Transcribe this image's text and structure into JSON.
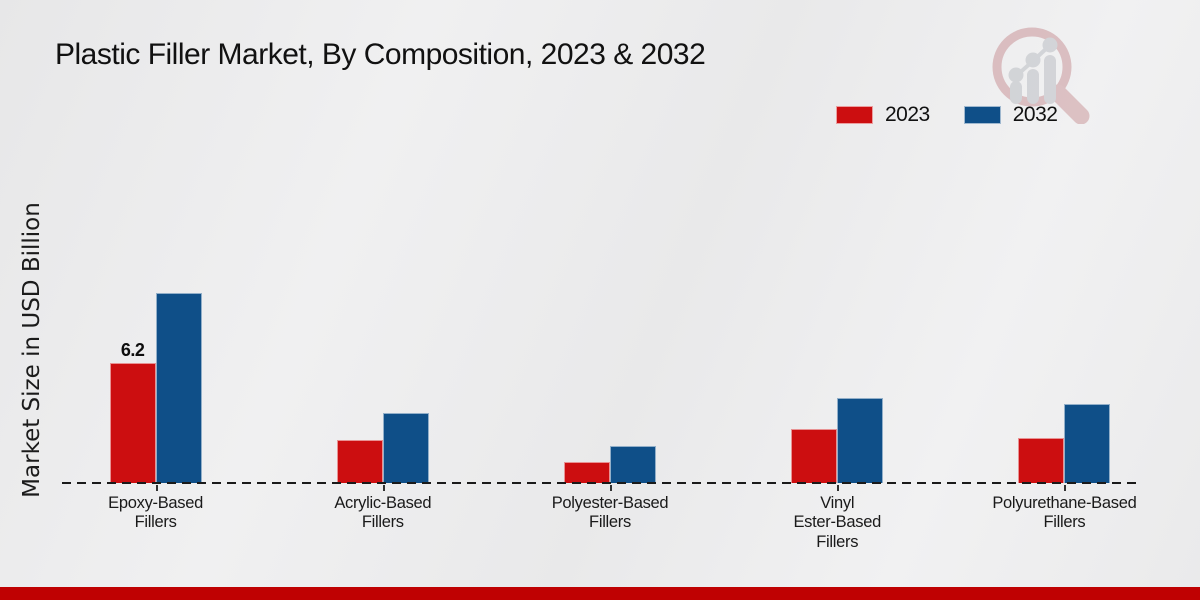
{
  "title": "Plastic Filler Market, By Composition, 2023 & 2032",
  "y_axis_label": "Market Size in USD Billion",
  "legend": {
    "items": [
      {
        "label": "2023",
        "color": "#cc0e10"
      },
      {
        "label": "2032",
        "color": "#0f4f88"
      }
    ]
  },
  "chart_data": {
    "type": "bar",
    "title": "Plastic Filler Market, By Composition, 2023 & 2032",
    "xlabel": "",
    "ylabel": "Market Size in USD Billion",
    "categories": [
      "Epoxy-Based\nFillers",
      "Acrylic-Based\nFillers",
      "Polyester-Based\nFillers",
      "Vinyl\nEster-Based\nFillers",
      "Polyurethane-Based\nFillers"
    ],
    "series": [
      {
        "name": "2023",
        "color": "#cc0e10",
        "values": [
          6.2,
          2.2,
          1.1,
          2.8,
          2.3
        ]
      },
      {
        "name": "2032",
        "color": "#0f4f88",
        "values": [
          9.8,
          3.6,
          1.9,
          4.4,
          4.1
        ]
      }
    ],
    "data_labels": [
      {
        "category_index": 0,
        "series_index": 0,
        "text": "6.2"
      }
    ],
    "ylim": [
      0,
      10.5
    ],
    "grid": false,
    "axis_style": "dashed-zero-baseline",
    "legend_position": "top-right"
  },
  "colors": {
    "accent_red": "#cc0e10",
    "accent_blue": "#0f4f88",
    "footer_band": "#bf0102",
    "background": "#ededee"
  },
  "logo": {
    "name": "market-research-watermark"
  }
}
